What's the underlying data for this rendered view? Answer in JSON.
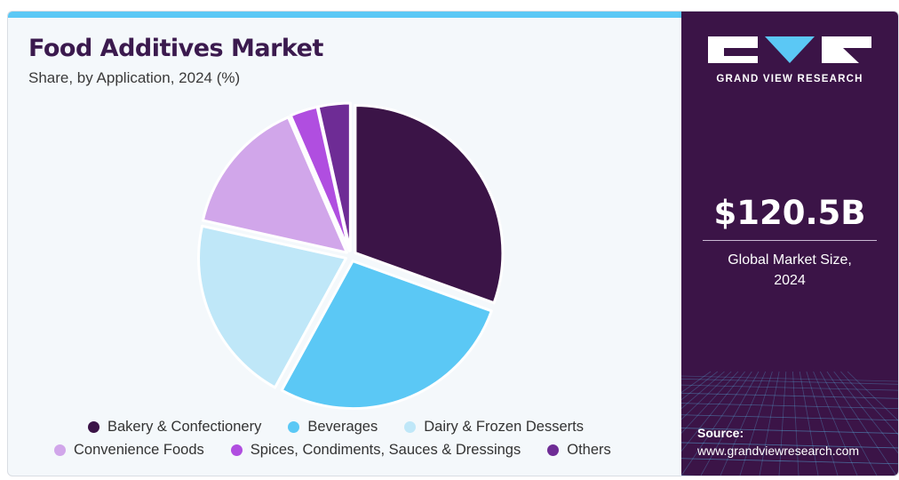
{
  "header": {
    "title": "Food Additives Market",
    "subtitle": "Share, by Application, 2024 (%)"
  },
  "chart_data": {
    "type": "pie",
    "title": "Food Additives Market",
    "subtitle": "Share, by Application, 2024 (%)",
    "categories": [
      "Bakery & Confectionery",
      "Beverages",
      "Dairy & Frozen Desserts",
      "Convenience Foods",
      "Spices, Condiments, Sauces & Dressings",
      "Others"
    ],
    "values": [
      30.5,
      27.5,
      20.5,
      15,
      3,
      3.5
    ],
    "colors": [
      "#3b1447",
      "#5bc8f5",
      "#bfe7f8",
      "#d1a6ea",
      "#b04ee0",
      "#6e2c95"
    ],
    "legend_position": "bottom"
  },
  "legend": {
    "row1": [
      {
        "label": "Bakery & Confectionery",
        "color": "#3b1447"
      },
      {
        "label": "Beverages",
        "color": "#5bc8f5"
      },
      {
        "label": "Dairy & Frozen Desserts",
        "color": "#bfe7f8"
      }
    ],
    "row2": [
      {
        "label": "Convenience Foods",
        "color": "#d1a6ea"
      },
      {
        "label": "Spices, Condiments, Sauces & Dressings",
        "color": "#b04ee0"
      },
      {
        "label": "Others",
        "color": "#6e2c95"
      }
    ]
  },
  "sidebar": {
    "logo_text": "GRAND VIEW RESEARCH",
    "market_size_value": "$120.5B",
    "market_size_label_line1": "Global Market Size,",
    "market_size_label_line2": "2024",
    "source_label": "Source:",
    "source_url": "www.grandviewresearch.com",
    "background_color": "#3b1447",
    "accent_color": "#5bc8f5"
  }
}
